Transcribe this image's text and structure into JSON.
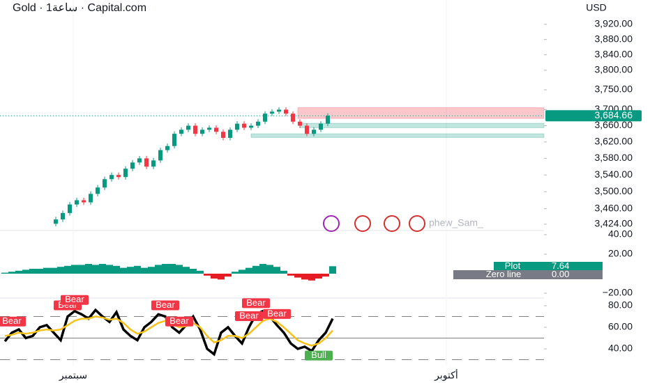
{
  "chart_data": [
    {
      "type": "candlestick",
      "title": "Gold · 1ساعة · Capital.com",
      "currency": "USD",
      "log_scale": true,
      "ylim": [
        3411,
        3985
      ],
      "yticks": [
        {
          "value": 3920,
          "label": "3,920.00"
        },
        {
          "value": 3880,
          "label": "3,880.00"
        },
        {
          "value": 3840,
          "label": "3,840.00"
        },
        {
          "value": 3800,
          "label": "3,800.00"
        },
        {
          "value": 3750,
          "label": "3,750.00"
        },
        {
          "value": 3700,
          "label": "3,700.00"
        },
        {
          "value": 3660,
          "label": "3,660.00"
        },
        {
          "value": 3620,
          "label": "3,620.00"
        },
        {
          "value": 3580,
          "label": "3,580.00"
        },
        {
          "value": 3540,
          "label": "3,540.00"
        },
        {
          "value": 3500,
          "label": "3,500.00"
        },
        {
          "value": 3460,
          "label": "3,460.00"
        },
        {
          "value": 3424,
          "label": "3,424.00"
        }
      ],
      "xticks": [
        {
          "value": 2.5,
          "label": "سبتمبر"
        },
        {
          "value": 56,
          "label": "أكتوبر"
        }
      ],
      "open": [
        3425,
        3435,
        3450,
        3470,
        3480,
        3475,
        3495,
        3510,
        3530,
        3540,
        3535,
        3555,
        3570,
        3580,
        3560,
        3575,
        3600,
        3610,
        3640,
        3650,
        3660,
        3640,
        3650,
        3655,
        3645,
        3630,
        3650,
        3665,
        3655,
        3660,
        3670,
        3690,
        3695,
        3700,
        3690,
        3670,
        3660,
        3640,
        3650,
        3665
      ],
      "high": [
        3441,
        3456,
        3476,
        3486,
        3486,
        3501,
        3516,
        3536,
        3546,
        3546,
        3561,
        3576,
        3586,
        3586,
        3581,
        3606,
        3616,
        3646,
        3656,
        3666,
        3666,
        3656,
        3661,
        3661,
        3651,
        3656,
        3671,
        3671,
        3666,
        3676,
        3696,
        3701,
        3706,
        3706,
        3696,
        3676,
        3666,
        3656,
        3671,
        3691
      ],
      "low": [
        3419,
        3429,
        3444,
        3464,
        3469,
        3469,
        3489,
        3504,
        3524,
        3529,
        3529,
        3549,
        3564,
        3554,
        3554,
        3569,
        3594,
        3604,
        3634,
        3644,
        3634,
        3634,
        3644,
        3639,
        3624,
        3624,
        3644,
        3649,
        3649,
        3654,
        3664,
        3684,
        3689,
        3684,
        3664,
        3654,
        3634,
        3634,
        3644,
        3659
      ],
      "close": [
        3435,
        3450,
        3470,
        3480,
        3475,
        3495,
        3510,
        3530,
        3540,
        3535,
        3555,
        3570,
        3580,
        3560,
        3575,
        3600,
        3610,
        3640,
        3650,
        3660,
        3640,
        3650,
        3655,
        3645,
        3630,
        3650,
        3665,
        3655,
        3660,
        3670,
        3690,
        3695,
        3700,
        3690,
        3670,
        3660,
        3640,
        3650,
        3665,
        3685
      ],
      "up_color": "#089981",
      "down_color": "#f23645",
      "last_price": {
        "value": 3684.66,
        "label": "3,684.66"
      },
      "zones": [
        {
          "top": 3705,
          "bottom": 3678,
          "color": "rgba(242,54,69,0.28)"
        },
        {
          "top": 3666,
          "bottom": 3655,
          "color": "rgba(8,153,129,0.25)"
        },
        {
          "top": 3640,
          "bottom": 3631,
          "color": "rgba(8,153,129,0.25)"
        }
      ],
      "watermark": "phew_Sam_"
    },
    {
      "type": "bar",
      "ylim": [
        -22.86,
        41.43
      ],
      "yticks": [
        {
          "value": 40,
          "label": "40.00"
        },
        {
          "value": 20,
          "label": "20.00"
        },
        {
          "value": -20,
          "label": "−20.00"
        }
      ],
      "series_name": "Plot",
      "up_color": "#089981",
      "down_color": "#e51c23",
      "values": [
        1,
        2,
        3,
        4,
        5,
        5,
        6,
        6,
        7,
        8,
        9,
        9,
        10,
        9,
        10,
        9,
        8,
        6,
        7,
        8,
        6,
        7,
        9,
        10,
        10,
        9,
        7,
        5,
        3,
        -2,
        -5,
        -6,
        -3,
        2,
        4,
        6,
        8,
        10,
        9,
        7,
        3,
        -2,
        -4,
        -6,
        -7,
        -5,
        -3,
        7.64
      ],
      "zero_line": {
        "name": "Zero line",
        "value": 0,
        "label": "0.00"
      }
    },
    {
      "type": "line",
      "ylim": [
        24.5,
        85.8
      ],
      "yticks": [
        {
          "value": 80,
          "label": "80.00"
        },
        {
          "value": 60,
          "label": "60.00"
        },
        {
          "value": 40,
          "label": "40.00"
        }
      ],
      "levels": [
        70,
        50,
        30
      ],
      "series": [
        {
          "color": "#000000",
          "values": [
            47,
            55,
            58,
            50,
            52,
            60,
            62,
            55,
            48,
            70,
            75,
            72,
            68,
            76,
            70,
            65,
            74,
            58,
            52,
            48,
            60,
            65,
            72,
            70,
            60,
            55,
            62,
            70,
            58,
            40,
            35,
            55,
            60,
            52,
            45,
            60,
            72,
            75,
            70,
            62,
            55,
            45,
            40,
            42,
            38,
            48,
            55,
            68
          ]
        },
        {
          "color": "#f5c21b",
          "values": [
            52,
            53,
            55,
            54,
            55,
            57,
            58,
            57,
            58,
            62,
            66,
            68,
            68,
            70,
            69,
            67,
            68,
            64,
            58,
            54,
            56,
            60,
            64,
            66,
            63,
            60,
            61,
            64,
            60,
            52,
            46,
            48,
            52,
            52,
            50,
            54,
            60,
            66,
            68,
            65,
            60,
            54,
            48,
            45,
            43,
            45,
            50,
            57
          ]
        }
      ],
      "signal_labels": [
        null,
        "Bear",
        null,
        null,
        null,
        null,
        null,
        null,
        null,
        "Bear",
        "Bear",
        null,
        null,
        null,
        null,
        null,
        null,
        null,
        null,
        null,
        null,
        null,
        null,
        "Bear",
        null,
        "Bear",
        null,
        null,
        null,
        null,
        null,
        null,
        null,
        null,
        null,
        "Bear",
        "Bear",
        null,
        null,
        "Bear",
        null,
        null,
        null,
        null,
        null,
        "Bull",
        null,
        null
      ]
    }
  ]
}
